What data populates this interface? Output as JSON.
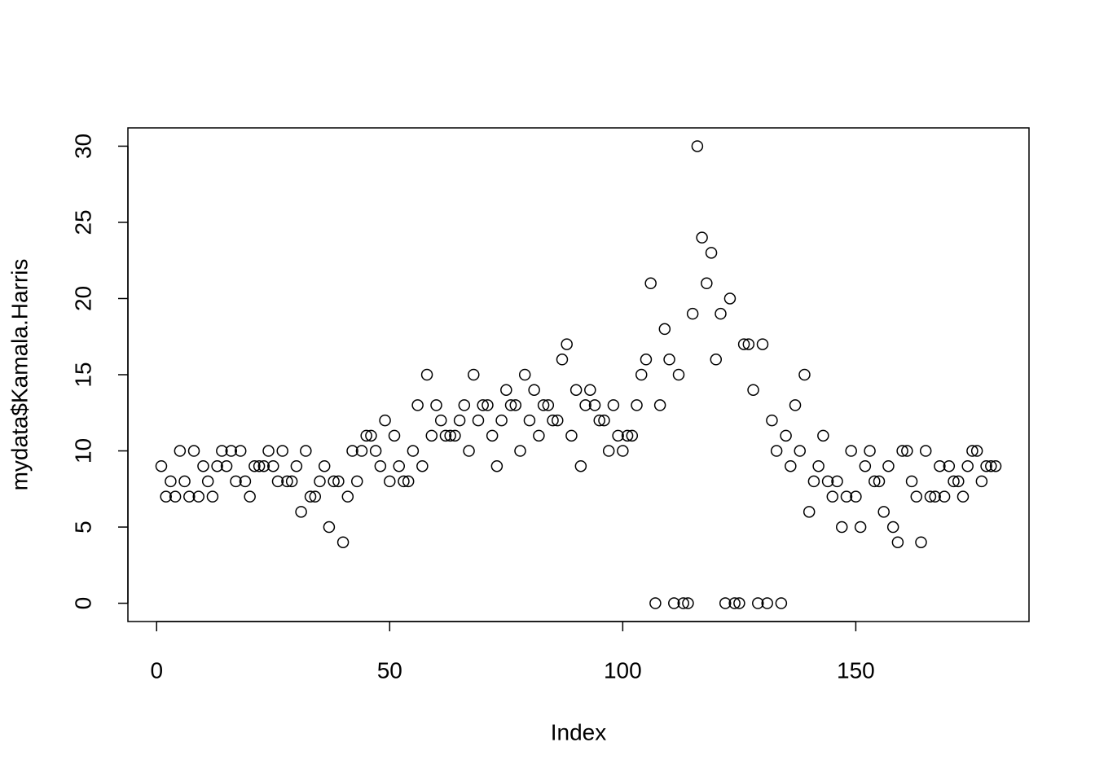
{
  "chart_data": {
    "type": "scatter",
    "x_label": "Index",
    "y_label": "mydata$Kamala.Harris",
    "x": [
      1,
      2,
      3,
      4,
      5,
      6,
      7,
      8,
      9,
      10,
      11,
      12,
      13,
      14,
      15,
      16,
      17,
      18,
      19,
      20,
      21,
      22,
      23,
      24,
      25,
      26,
      27,
      28,
      29,
      30,
      31,
      32,
      33,
      34,
      35,
      36,
      37,
      38,
      39,
      40,
      41,
      42,
      43,
      44,
      45,
      46,
      47,
      48,
      49,
      50,
      51,
      52,
      53,
      54,
      55,
      56,
      57,
      58,
      59,
      60,
      61,
      62,
      63,
      64,
      65,
      66,
      67,
      68,
      69,
      70,
      71,
      72,
      73,
      74,
      75,
      76,
      77,
      78,
      79,
      80,
      81,
      82,
      83,
      84,
      85,
      86,
      87,
      88,
      89,
      90,
      91,
      92,
      93,
      94,
      95,
      96,
      97,
      98,
      99,
      100,
      101,
      102,
      103,
      104,
      105,
      106,
      107,
      108,
      109,
      110,
      111,
      112,
      113,
      114,
      115,
      116,
      117,
      118,
      119,
      120,
      121,
      122,
      123,
      124,
      125,
      126,
      127,
      128,
      129,
      130,
      131,
      132,
      133,
      134,
      135,
      136,
      137,
      138,
      139,
      140,
      141,
      142,
      143,
      144,
      145,
      146,
      147,
      148,
      149,
      150,
      151,
      152,
      153,
      154,
      155,
      156,
      157,
      158,
      159,
      160,
      161,
      162,
      163,
      164,
      165,
      166,
      167,
      168,
      169,
      170,
      171,
      172,
      173,
      174,
      175,
      176,
      177,
      178,
      179,
      180
    ],
    "values": [
      9,
      7,
      8,
      7,
      10,
      8,
      7,
      10,
      7,
      9,
      8,
      7,
      9,
      10,
      9,
      10,
      8,
      10,
      8,
      7,
      9,
      9,
      9,
      10,
      9,
      8,
      10,
      8,
      8,
      9,
      6,
      10,
      7,
      7,
      8,
      9,
      5,
      8,
      8,
      4,
      7,
      10,
      8,
      10,
      11,
      11,
      10,
      9,
      12,
      8,
      11,
      9,
      8,
      8,
      10,
      13,
      9,
      15,
      11,
      13,
      12,
      11,
      11,
      11,
      12,
      13,
      10,
      15,
      12,
      13,
      13,
      11,
      9,
      12,
      14,
      13,
      13,
      10,
      15,
      12,
      14,
      11,
      13,
      13,
      12,
      12,
      16,
      17,
      11,
      14,
      9,
      13,
      14,
      13,
      12,
      12,
      10,
      13,
      11,
      10,
      11,
      11,
      13,
      15,
      16,
      21,
      0,
      13,
      18,
      16,
      0,
      15,
      0,
      0,
      19,
      30,
      24,
      21,
      23,
      16,
      19,
      0,
      20,
      0,
      0,
      17,
      17,
      14,
      0,
      17,
      0,
      12,
      10,
      0,
      11,
      9,
      13,
      10,
      15,
      6,
      8,
      9,
      11,
      8,
      7,
      8,
      5,
      7,
      10,
      7,
      5,
      9,
      10,
      8,
      8,
      6,
      9,
      5,
      4,
      10,
      10,
      8,
      7,
      4,
      10,
      7,
      7,
      9,
      7,
      9,
      8,
      8,
      7,
      9,
      10,
      10,
      8,
      9,
      9,
      9
    ],
    "color": "#000000",
    "xlim": [
      -6.16,
      187.16
    ],
    "xticks": [
      0,
      50,
      100,
      150
    ],
    "ylim": [
      -1.2,
      31.2
    ],
    "yticks": [
      0,
      5,
      10,
      15,
      20,
      25,
      30
    ]
  }
}
